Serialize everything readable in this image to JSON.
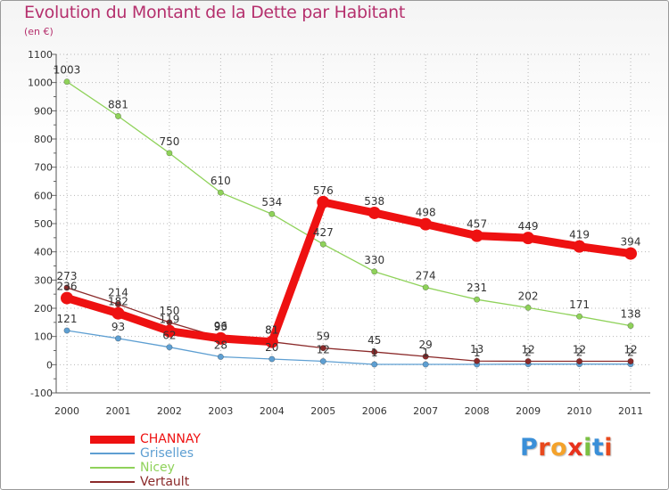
{
  "title": "Evolution du Montant de la Dette par Habitant",
  "subtitle": "(en €)",
  "logo": {
    "text": "Proxiti",
    "colors": [
      "#3a8fd8",
      "#e8491d",
      "#f4a22b",
      "#e8321d",
      "#7bc043",
      "#3a8fd8",
      "#e8491d"
    ]
  },
  "chart_data": {
    "type": "line",
    "title": "Evolution du Montant de la Dette par Habitant",
    "subtitle": "(en €)",
    "x": [
      "2000",
      "2001",
      "2002",
      "2003",
      "2004",
      "2005",
      "2006",
      "2007",
      "2008",
      "2009",
      "2010",
      "2011"
    ],
    "ylim": [
      -100,
      1100
    ],
    "yticks": [
      "-100",
      "0",
      "100",
      "200",
      "300",
      "400",
      "500",
      "600",
      "700",
      "800",
      "900",
      "1000",
      "1100"
    ],
    "grid": true,
    "legend_position": "bottom-left",
    "series": [
      {
        "name": "CHANNAY",
        "color": "#ee1111",
        "values": [
          236,
          182,
          119,
          93,
          81,
          576,
          538,
          498,
          457,
          449,
          419,
          394
        ],
        "labels": [
          "236",
          "182",
          "119",
          "93",
          "81",
          "576",
          "538",
          "498",
          "457",
          "449",
          "419",
          "394"
        ]
      },
      {
        "name": "Griselles",
        "color": "#5e9fd2",
        "values": [
          121,
          93,
          62,
          28,
          20,
          12,
          1,
          1,
          1,
          2,
          2,
          2
        ],
        "labels": [
          "121",
          "93",
          "62",
          "28",
          "20",
          "12",
          "1",
          "1",
          "1",
          "2",
          "2",
          "2"
        ]
      },
      {
        "name": "Nicey",
        "color": "#8fd25a",
        "values": [
          1003,
          881,
          750,
          610,
          534,
          427,
          330,
          274,
          231,
          202,
          171,
          138
        ],
        "labels": [
          "1003",
          "881",
          "750",
          "610",
          "534",
          "427",
          "330",
          "274",
          "231",
          "202",
          "171",
          "138"
        ]
      },
      {
        "name": "Vertault",
        "color": "#8b2a2a",
        "values": [
          273,
          214,
          150,
          96,
          81,
          59,
          45,
          29,
          13,
          12,
          12,
          12
        ],
        "labels": [
          "273",
          "214",
          "150",
          "96",
          "81",
          "59",
          "45",
          "29",
          "13",
          "12",
          "12",
          "12"
        ]
      }
    ]
  }
}
